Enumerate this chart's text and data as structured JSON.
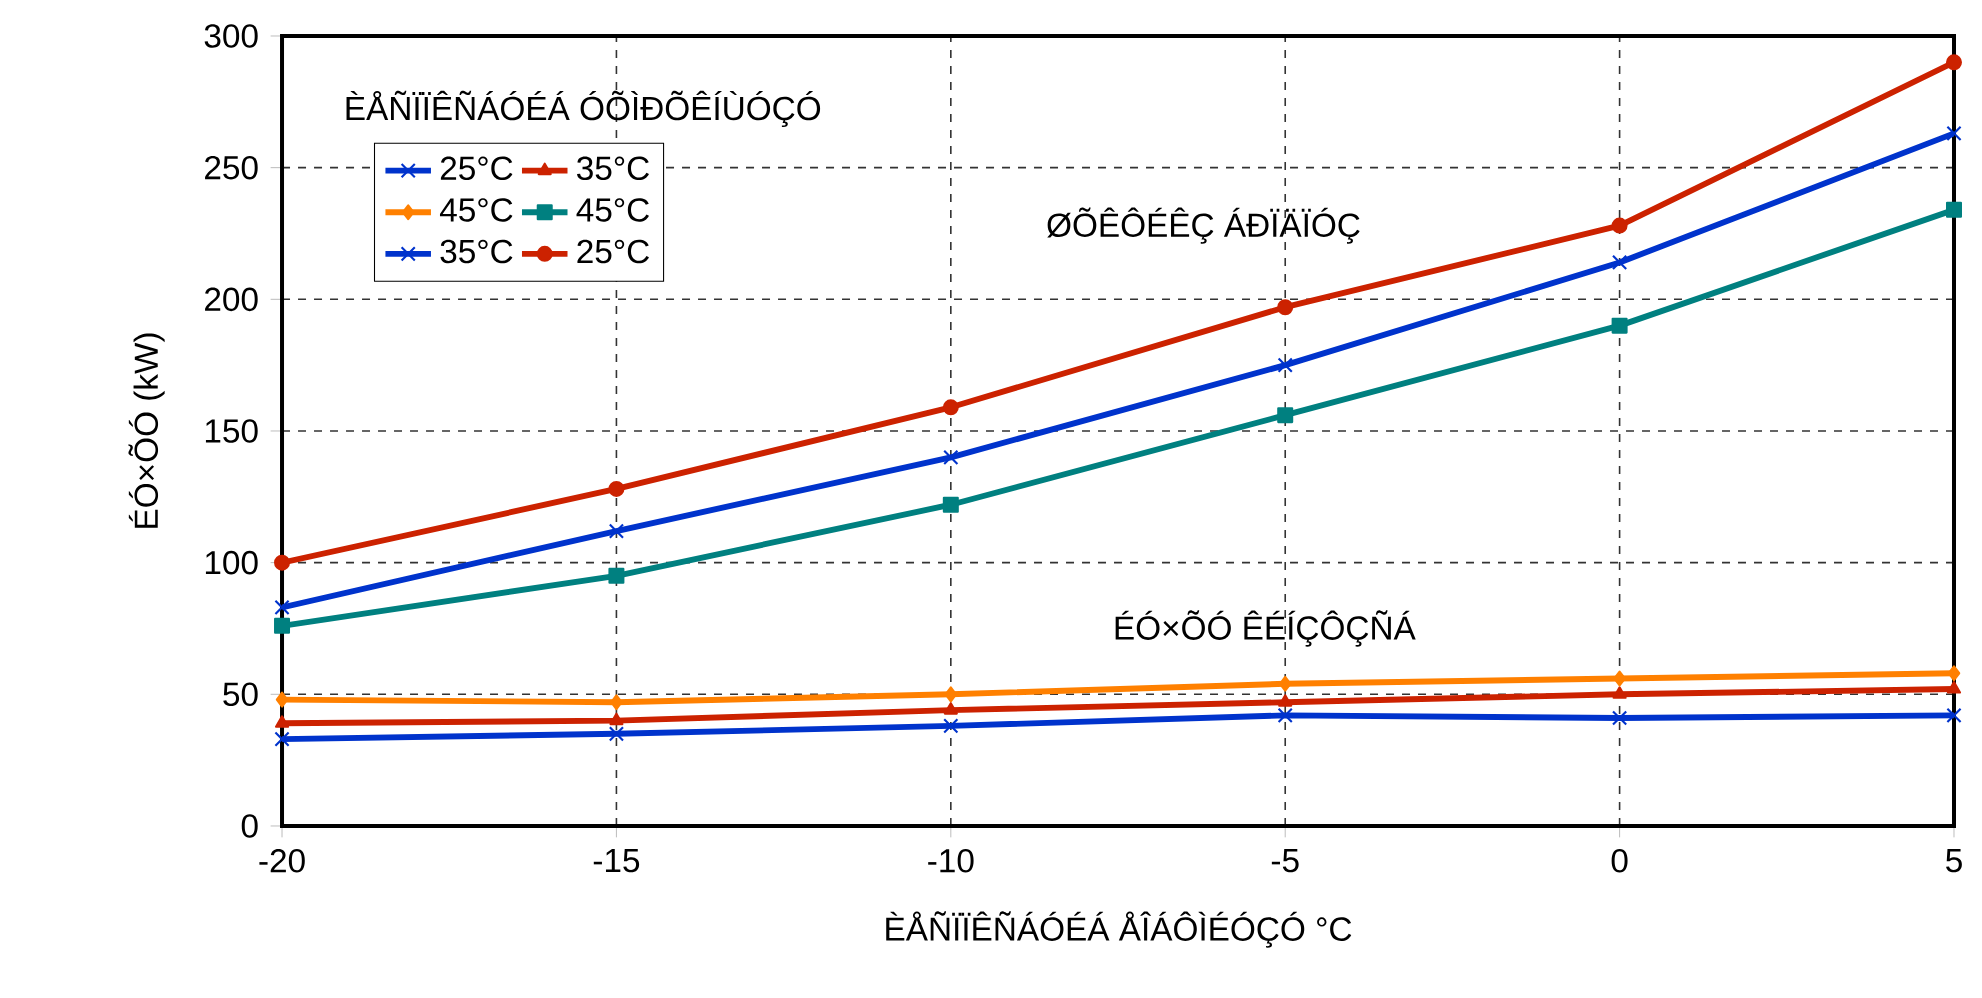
{
  "chart_data": {
    "type": "line",
    "xlabel": "ÈÅÑÏÏÊÑÁÓÉÁ ÅÎÁÔÌÉÓÇÓ °C",
    "ylabel": "ÉÓ×ÕÓ (kW)",
    "legend_title": "ÈÅÑÏÏÊÑÁÓÉÁ ÓÕÌÐÕÊÍÙÓÇÓ",
    "annotations": [
      "ØÕÊÔÉÊÇ ÁÐÏÄÏÓÇ",
      "ÉÓ×ÕÓ ÊÉÍÇÔÇÑÁ"
    ],
    "x": [
      -20,
      -15,
      -10,
      -5,
      0,
      5
    ],
    "series": [
      {
        "name": "25°C",
        "color": "#0033cc",
        "marker": "cross",
        "values": [
          33,
          35,
          38,
          42,
          41,
          42
        ]
      },
      {
        "name": "35°C",
        "color": "#cc2200",
        "marker": "triangle",
        "values": [
          39,
          40,
          44,
          47,
          50,
          52
        ]
      },
      {
        "name": "45°C",
        "color": "#ff8000",
        "marker": "diamond",
        "values": [
          48,
          47,
          50,
          54,
          56,
          58
        ]
      },
      {
        "name": "45°C",
        "color": "#008080",
        "marker": "square",
        "values": [
          76,
          95,
          122,
          156,
          190,
          234
        ]
      },
      {
        "name": "35°C",
        "color": "#0033cc",
        "marker": "cross",
        "values": [
          83,
          112,
          140,
          175,
          214,
          263
        ]
      },
      {
        "name": "25°C",
        "color": "#cc2200",
        "marker": "circle",
        "values": [
          100,
          128,
          159,
          197,
          228,
          290
        ]
      }
    ],
    "xlim": [
      -20,
      5
    ],
    "ylim": [
      0,
      300
    ],
    "xticks": [
      -20,
      -15,
      -10,
      -5,
      0,
      5
    ],
    "yticks": [
      0,
      50,
      100,
      150,
      200,
      250,
      300
    ],
    "grid": true,
    "legend": "top left",
    "line_style": "solid"
  }
}
